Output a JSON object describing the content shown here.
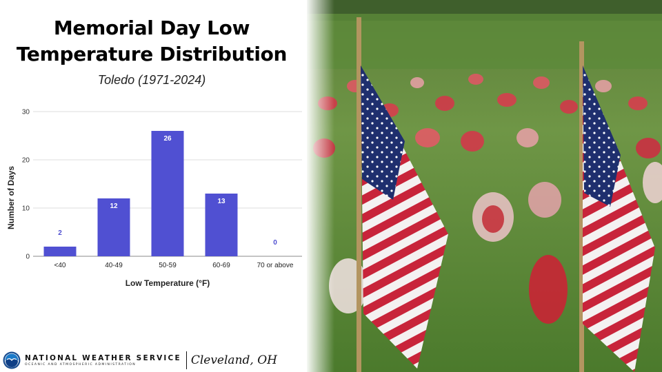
{
  "title_line1": "Memorial Day Low",
  "title_line2": "Temperature Distribution",
  "subtitle": "Toledo (1971-2024)",
  "footer": {
    "org_name": "NATIONAL WEATHER SERVICE",
    "org_sub": "OCEANIC AND ATMOSPHERIC ADMINISTRATION",
    "office": "Cleveland, OH"
  },
  "colors": {
    "bar": "#5050d2",
    "grid": "#dddddd"
  },
  "chart_data": {
    "type": "bar",
    "categories": [
      "<40",
      "40-49",
      "50-59",
      "60-69",
      "70 or above"
    ],
    "values": [
      2,
      12,
      26,
      13,
      0
    ],
    "title": "",
    "xlabel": "Low Temperature (°F)",
    "ylabel": "Number of Days",
    "ylim": [
      0,
      30
    ],
    "yticks": [
      0,
      10,
      20,
      30
    ],
    "grid": true
  },
  "photo": {
    "icon": "american-flags-photo"
  }
}
